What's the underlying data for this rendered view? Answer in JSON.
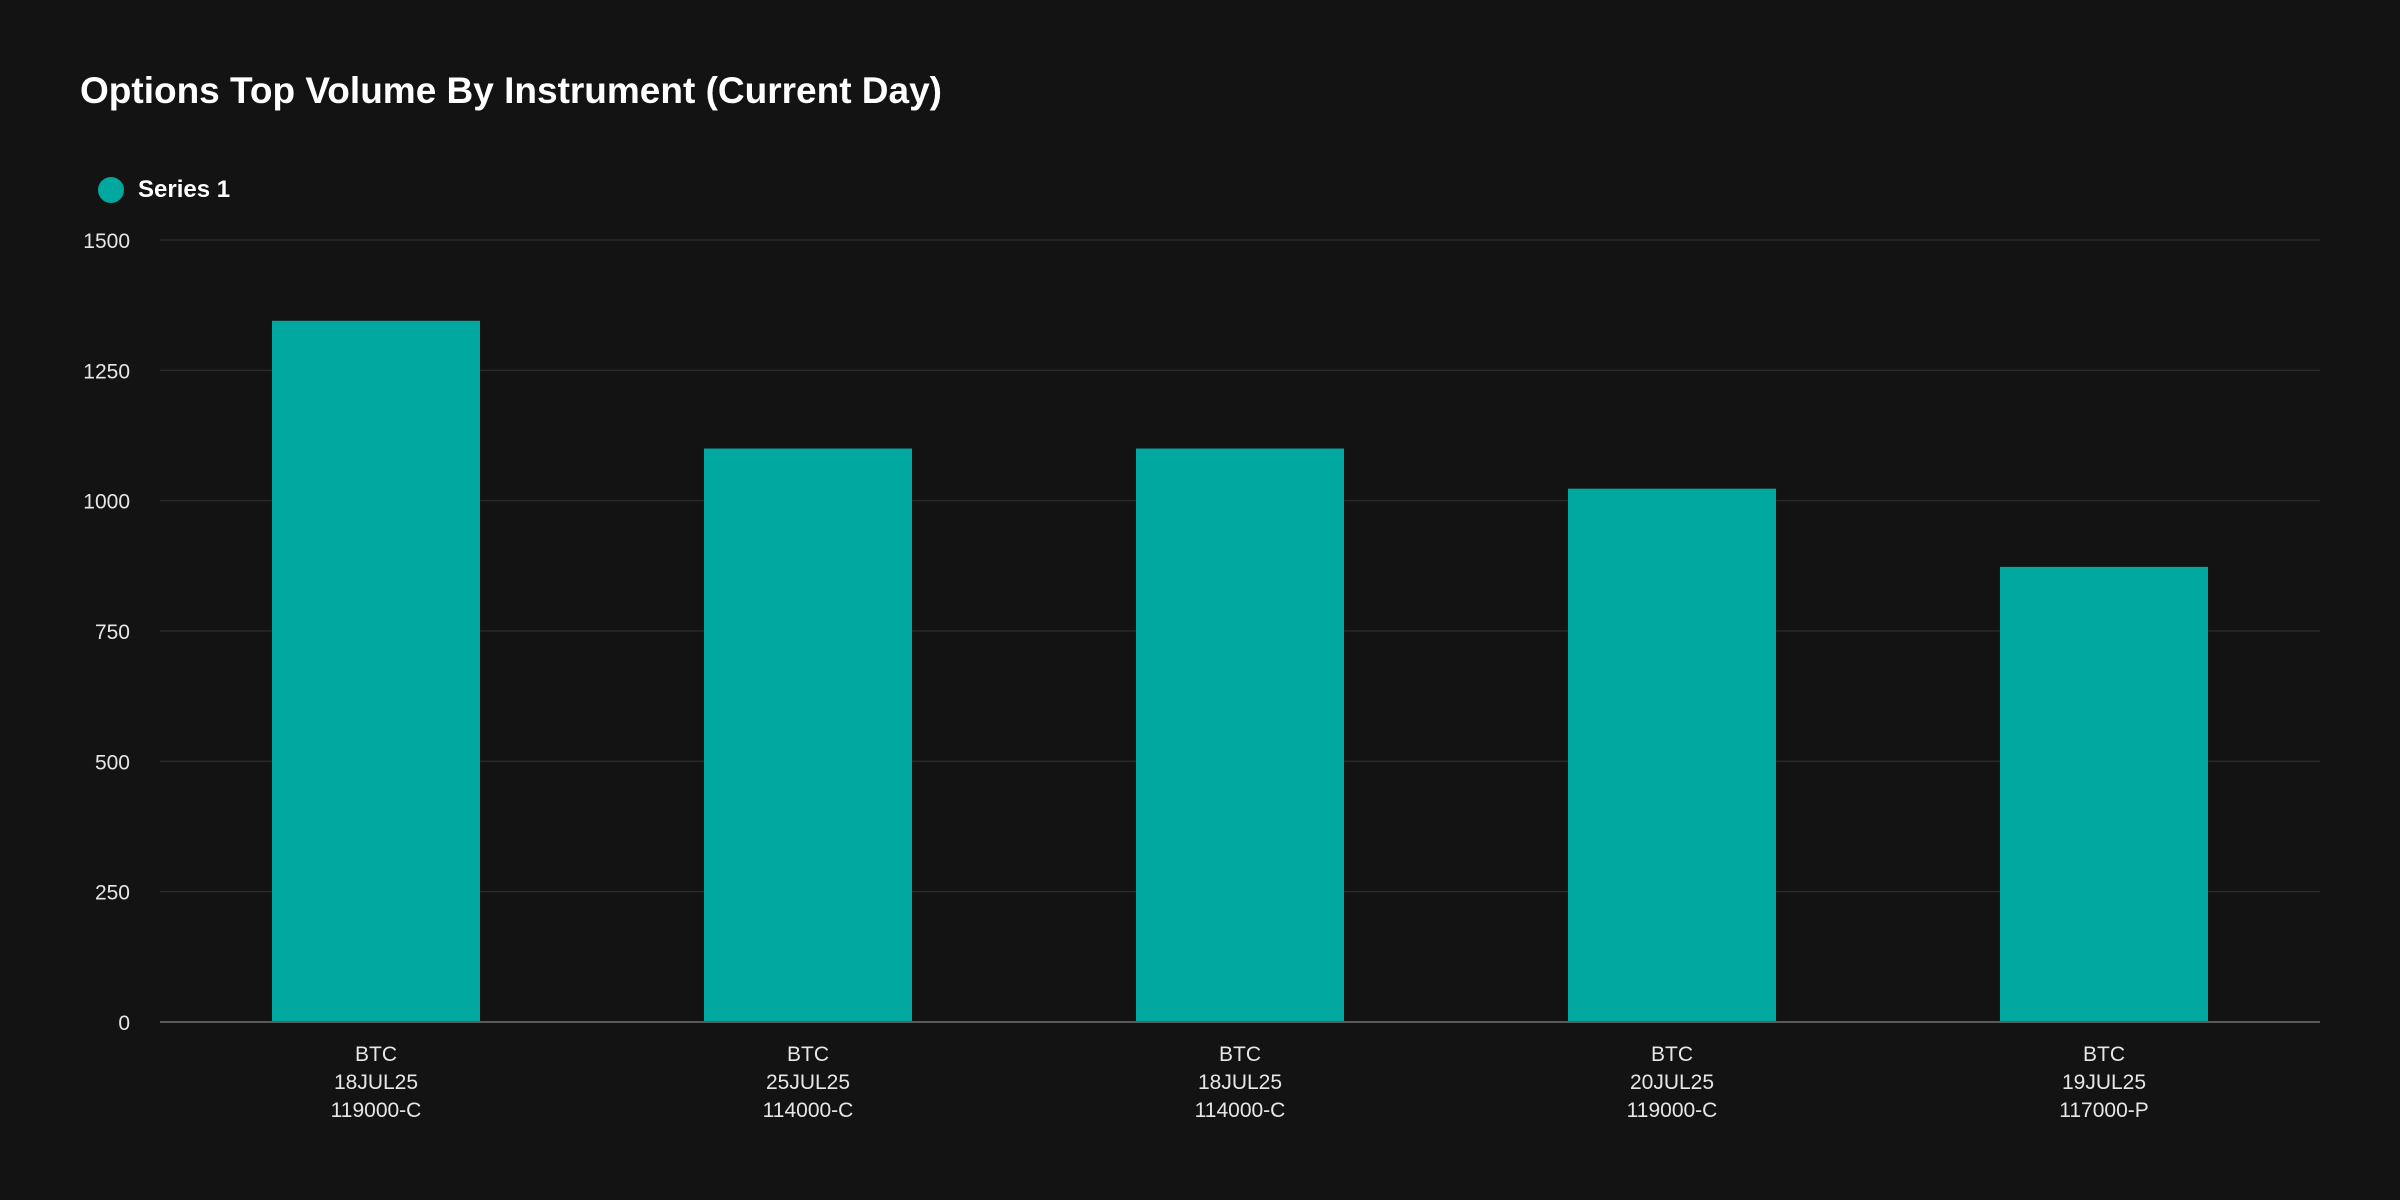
{
  "chart_data": {
    "type": "bar",
    "title": "Options Top Volume By Instrument (Current Day)",
    "categories": [
      [
        "BTC",
        "18JUL25",
        "119000-C"
      ],
      [
        "BTC",
        "25JUL25",
        "114000-C"
      ],
      [
        "BTC",
        "18JUL25",
        "114000-C"
      ],
      [
        "BTC",
        "20JUL25",
        "119000-C"
      ],
      [
        "BTC",
        "19JUL25",
        "117000-P"
      ]
    ],
    "series": [
      {
        "name": "Series 1",
        "color": "#00a8a0",
        "values": [
          1345,
          1100,
          1100,
          1023,
          873
        ]
      }
    ],
    "xlabel": "",
    "ylabel": "",
    "ylim": [
      0,
      1500
    ],
    "yticks": [
      0,
      250,
      500,
      750,
      1000,
      1250,
      1500
    ],
    "grid": true,
    "legend_position": "top-left"
  }
}
